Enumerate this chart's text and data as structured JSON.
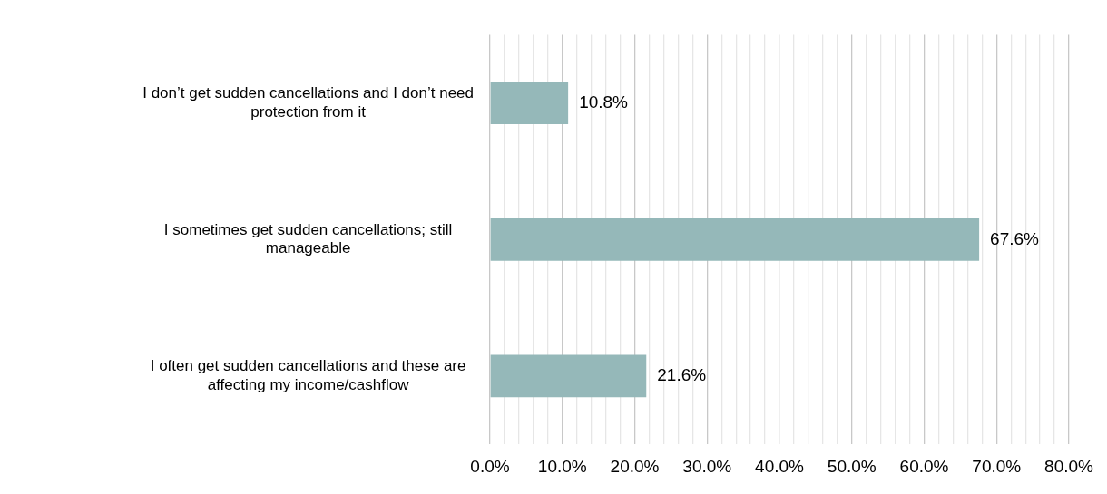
{
  "chart_data": {
    "type": "bar",
    "orientation": "horizontal",
    "categories": [
      "I don’t get sudden cancellations and I don’t need protection from it",
      "I sometimes get sudden cancellations; still manageable",
      "I often get sudden cancellations and these are affecting my income/cashflow"
    ],
    "values": [
      10.8,
      67.6,
      21.6
    ],
    "color": "#95b8b9",
    "value_labels": [
      "10.8%",
      "67.6%",
      "21.6%"
    ],
    "xlim": [
      0,
      80
    ],
    "xticks": [
      {
        "value": 0,
        "label": "0.0%"
      },
      {
        "value": 2,
        "label": null
      },
      {
        "value": 4,
        "label": null
      },
      {
        "value": 6,
        "label": null
      },
      {
        "value": 8,
        "label": null
      },
      {
        "value": 10,
        "label": "10.0%"
      },
      {
        "value": 12,
        "label": null
      },
      {
        "value": 14,
        "label": null
      },
      {
        "value": 16,
        "label": null
      },
      {
        "value": 18,
        "label": null
      },
      {
        "value": 20,
        "label": "20.0%"
      },
      {
        "value": 22,
        "label": null
      },
      {
        "value": 24,
        "label": null
      },
      {
        "value": 26,
        "label": null
      },
      {
        "value": 28,
        "label": null
      },
      {
        "value": 30,
        "label": "30.0%"
      },
      {
        "value": 32,
        "label": null
      },
      {
        "value": 34,
        "label": null
      },
      {
        "value": 36,
        "label": null
      },
      {
        "value": 38,
        "label": null
      },
      {
        "value": 40,
        "label": "40.0%"
      },
      {
        "value": 42,
        "label": null
      },
      {
        "value": 44,
        "label": null
      },
      {
        "value": 46,
        "label": null
      },
      {
        "value": 48,
        "label": null
      },
      {
        "value": 50,
        "label": "50.0%"
      },
      {
        "value": 52,
        "label": null
      },
      {
        "value": 54,
        "label": null
      },
      {
        "value": 56,
        "label": null
      },
      {
        "value": 58,
        "label": null
      },
      {
        "value": 60,
        "label": "60.0%"
      },
      {
        "value": 62,
        "label": null
      },
      {
        "value": 64,
        "label": null
      },
      {
        "value": 66,
        "label": null
      },
      {
        "value": 68,
        "label": null
      },
      {
        "value": 70,
        "label": "70.0%"
      },
      {
        "value": 72,
        "label": null
      },
      {
        "value": 74,
        "label": null
      },
      {
        "value": 76,
        "label": null
      },
      {
        "value": 78,
        "label": null
      },
      {
        "value": 80,
        "label": "80.0%"
      }
    ],
    "grid": "x",
    "legend": false
  }
}
